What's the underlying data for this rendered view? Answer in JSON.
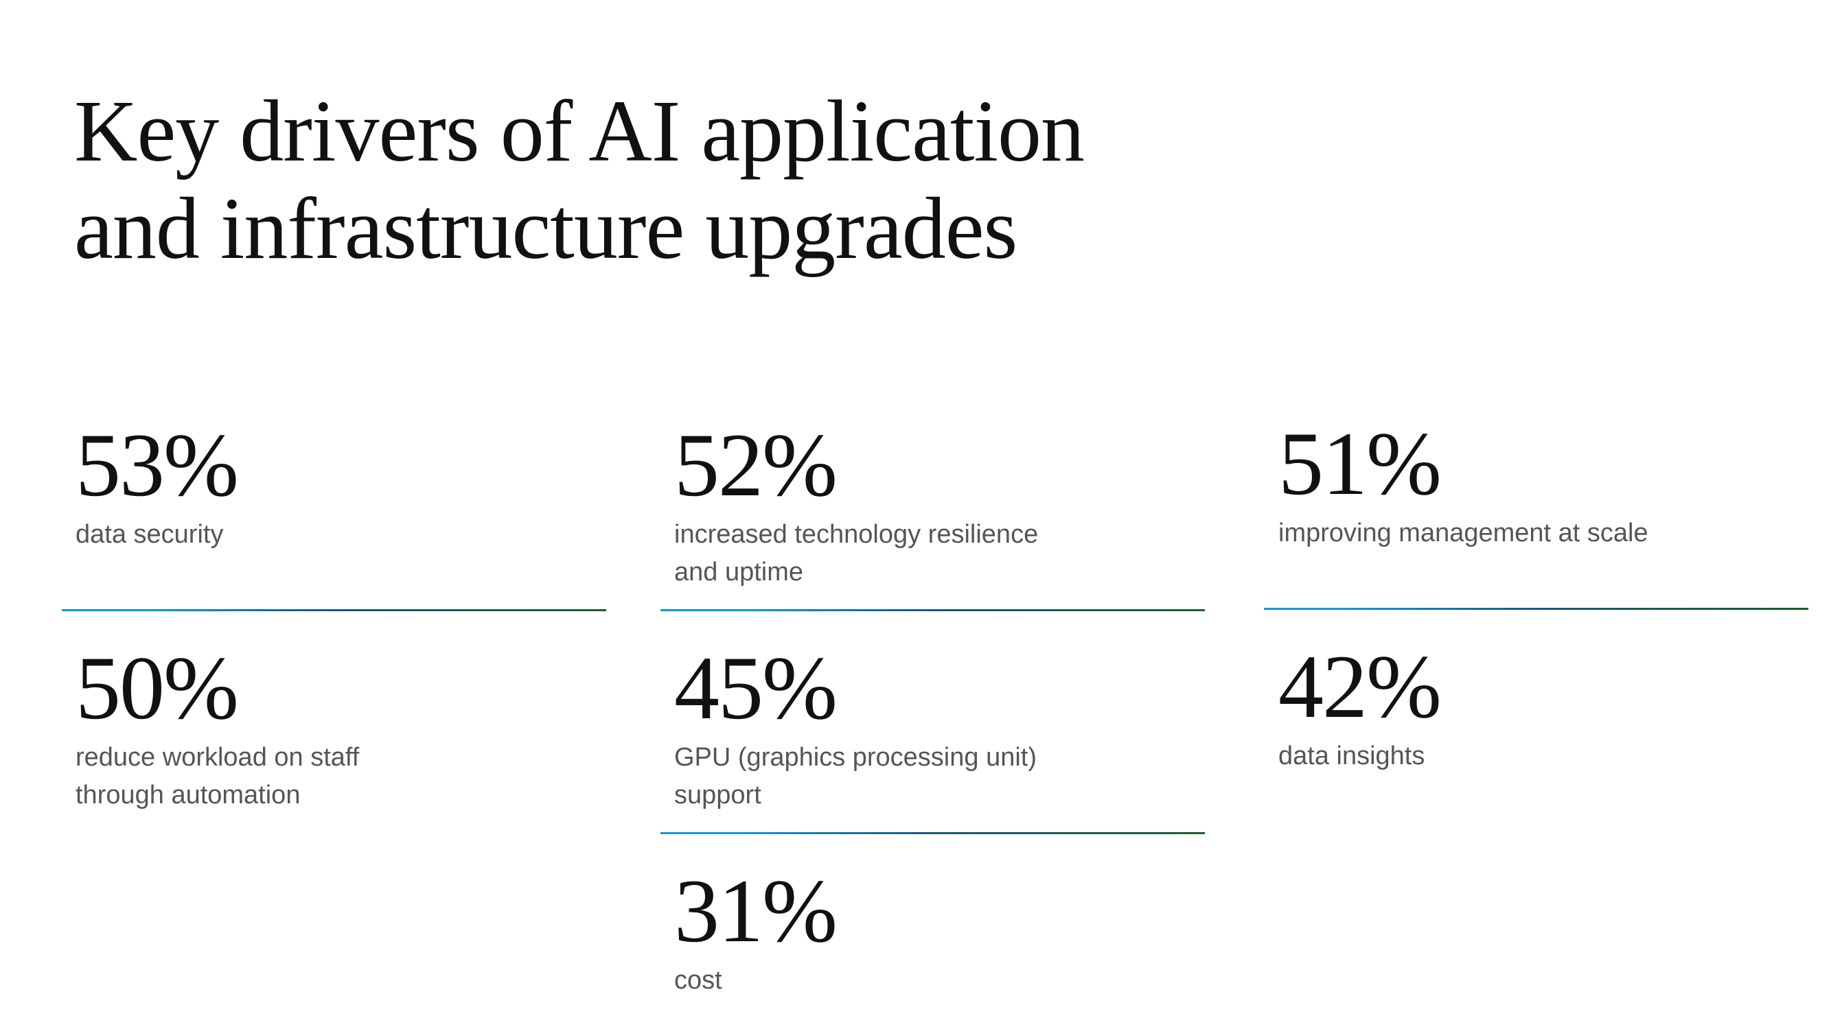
{
  "title": "Key drivers of AI application\nand infrastructure upgrades",
  "colors": {
    "rule_start": "#0a9ad6",
    "rule_mid": "#145a7a",
    "rule_end": "#1a5e2c"
  },
  "stats": [
    {
      "value": "53%",
      "label": "data security"
    },
    {
      "value": "52%",
      "label": "increased technology resilience\nand uptime"
    },
    {
      "value": "51%",
      "label": "improving management at scale"
    },
    {
      "value": "50%",
      "label": "reduce workload on staff\nthrough automation"
    },
    {
      "value": "45%",
      "label": "GPU (graphics processing unit) support"
    },
    {
      "value": "42%",
      "label": "data insights"
    },
    {
      "value": "31%",
      "label": "cost"
    }
  ]
}
